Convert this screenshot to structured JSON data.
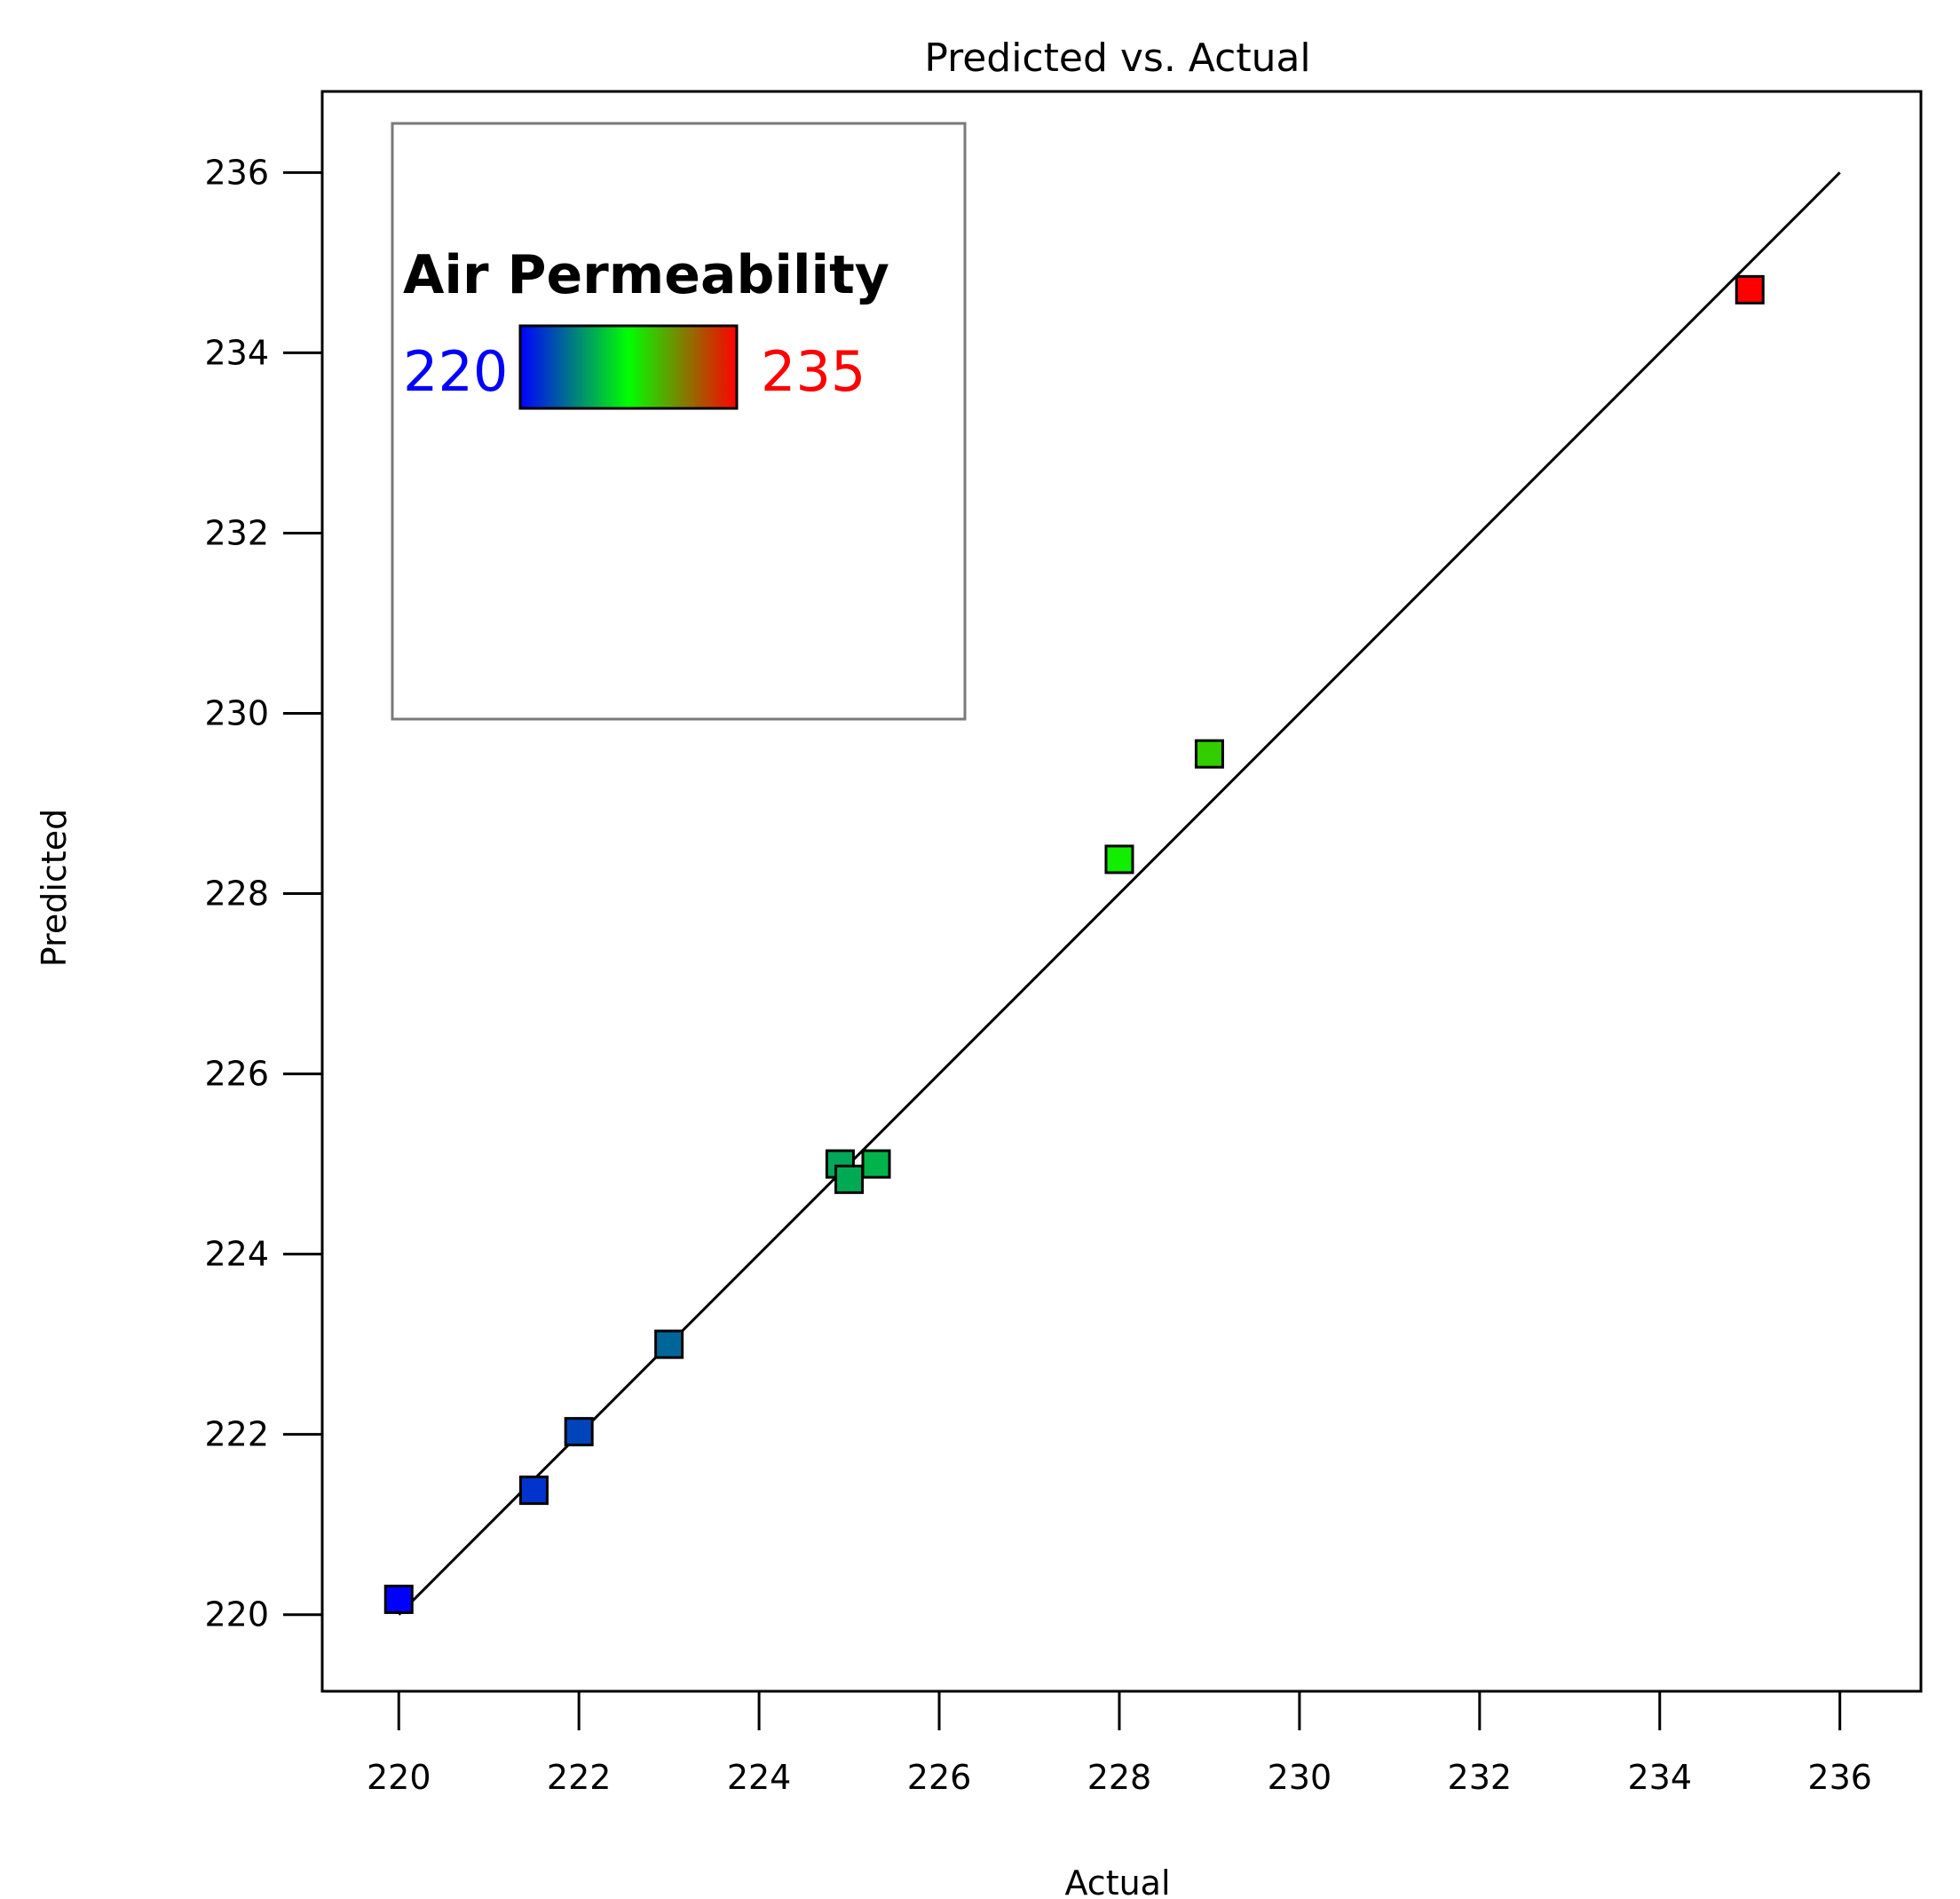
{
  "chart_data": {
    "type": "scatter",
    "title": "Predicted vs. Actual",
    "xlabel": "Actual",
    "ylabel": "Predicted",
    "xlim": [
      219.15,
      236.9
    ],
    "ylim": [
      219.15,
      236.9
    ],
    "xticks": [
      "220",
      "222",
      "224",
      "226",
      "228",
      "230",
      "232",
      "234",
      "236"
    ],
    "yticks": [
      "220",
      "222",
      "224",
      "226",
      "228",
      "230",
      "232",
      "234",
      "236"
    ],
    "grid": false,
    "reference_line": {
      "from": [
        220,
        220
      ],
      "to": [
        236,
        236
      ]
    },
    "color_scale": {
      "title": "Air Permeability",
      "min_label": "220",
      "max_label": "235",
      "min": 220,
      "max": 235,
      "colors": [
        "#0000ff",
        "#00ff00",
        "#ff0000"
      ],
      "min_label_color": "#0000ff",
      "max_label_color": "#ff0000"
    },
    "points": [
      {
        "x": 220.0,
        "y": 220.17
      },
      {
        "x": 221.5,
        "y": 221.38
      },
      {
        "x": 222.0,
        "y": 222.03
      },
      {
        "x": 223.0,
        "y": 223.0
      },
      {
        "x": 224.9,
        "y": 225.0
      },
      {
        "x": 225.0,
        "y": 224.83
      },
      {
        "x": 225.3,
        "y": 225.0
      },
      {
        "x": 228.0,
        "y": 228.38
      },
      {
        "x": 229.0,
        "y": 229.55
      },
      {
        "x": 235.0,
        "y": 234.7
      }
    ]
  }
}
